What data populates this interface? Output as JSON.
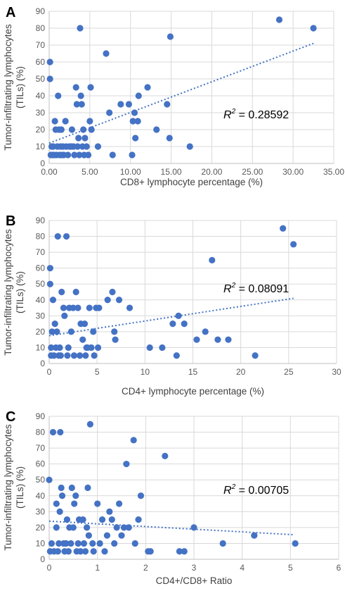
{
  "chart_data": [
    {
      "panel": "A",
      "type": "scatter",
      "xlabel": "CD8+ lymphocyte percentage (%)",
      "ylabel": "Tumor-infiltrating lymphocytes (TILs) (%)",
      "xlim": [
        0,
        35
      ],
      "ylim": [
        0,
        90
      ],
      "xticks": [
        "0.00",
        "5.00",
        "10.00",
        "15.00",
        "20.00",
        "25.00",
        "30.00",
        "35.00"
      ],
      "yticks": [
        "0",
        "10",
        "20",
        "30",
        "40",
        "50",
        "60",
        "70",
        "80",
        "90"
      ],
      "r2_label": "R",
      "r2_sup": "2",
      "r2_value": " = 0.28592",
      "grid": true,
      "trendline": {
        "x": [
          0,
          32.5
        ],
        "y": [
          12,
          71
        ]
      },
      "points": [
        [
          0.1,
          60
        ],
        [
          0.1,
          50
        ],
        [
          0.2,
          5
        ],
        [
          0.3,
          10
        ],
        [
          0.4,
          5
        ],
        [
          0.5,
          10
        ],
        [
          0.6,
          5
        ],
        [
          0.7,
          25
        ],
        [
          0.8,
          20
        ],
        [
          0.9,
          5
        ],
        [
          1.0,
          10
        ],
        [
          1.1,
          40
        ],
        [
          1.2,
          20
        ],
        [
          1.3,
          5
        ],
        [
          1.4,
          10
        ],
        [
          1.5,
          20
        ],
        [
          1.6,
          5
        ],
        [
          1.7,
          10
        ],
        [
          1.8,
          5
        ],
        [
          2.0,
          25
        ],
        [
          2.1,
          10
        ],
        [
          2.3,
          5
        ],
        [
          2.5,
          10
        ],
        [
          2.7,
          10
        ],
        [
          2.8,
          20
        ],
        [
          3.0,
          10
        ],
        [
          3.1,
          5
        ],
        [
          3.3,
          45
        ],
        [
          3.4,
          35
        ],
        [
          3.5,
          10
        ],
        [
          3.6,
          15
        ],
        [
          3.7,
          5
        ],
        [
          3.8,
          80
        ],
        [
          3.9,
          40
        ],
        [
          4.0,
          35
        ],
        [
          4.1,
          10
        ],
        [
          4.2,
          20
        ],
        [
          4.3,
          5
        ],
        [
          4.4,
          15
        ],
        [
          4.6,
          10
        ],
        [
          4.8,
          5
        ],
        [
          5.0,
          25
        ],
        [
          5.1,
          45
        ],
        [
          5.2,
          20
        ],
        [
          6.0,
          10
        ],
        [
          7.0,
          65
        ],
        [
          7.4,
          30
        ],
        [
          7.8,
          5
        ],
        [
          8.8,
          35
        ],
        [
          9.8,
          35
        ],
        [
          10.2,
          5
        ],
        [
          10.3,
          25
        ],
        [
          10.5,
          30
        ],
        [
          10.6,
          15
        ],
        [
          10.9,
          25
        ],
        [
          11.0,
          40
        ],
        [
          12.1,
          45
        ],
        [
          13.2,
          20
        ],
        [
          14.5,
          35
        ],
        [
          14.8,
          15
        ],
        [
          14.9,
          75
        ],
        [
          17.3,
          10
        ],
        [
          28.3,
          85
        ],
        [
          32.5,
          80
        ]
      ]
    },
    {
      "panel": "B",
      "type": "scatter",
      "xlabel": "CD4+ lymphocyte percentage (%)",
      "ylabel": "Tumor-infiltrating lymphocytes (TILs) (%)",
      "xlim": [
        0,
        30
      ],
      "ylim": [
        0,
        90
      ],
      "xticks": [
        "0",
        "5",
        "10",
        "15",
        "20",
        "25",
        "30"
      ],
      "yticks": [
        "0",
        "10",
        "20",
        "30",
        "40",
        "50",
        "60",
        "70",
        "80",
        "90"
      ],
      "r2_label": "R",
      "r2_sup": "2",
      "r2_value": " = 0.08091",
      "grid": true,
      "trendline": {
        "x": [
          0,
          25.5
        ],
        "y": [
          17.5,
          41
        ]
      },
      "points": [
        [
          0.1,
          60
        ],
        [
          0.1,
          50
        ],
        [
          0.2,
          5
        ],
        [
          0.2,
          10
        ],
        [
          0.3,
          20
        ],
        [
          0.4,
          40
        ],
        [
          0.5,
          5
        ],
        [
          0.6,
          25
        ],
        [
          0.7,
          10
        ],
        [
          0.8,
          20
        ],
        [
          0.9,
          80
        ],
        [
          1.0,
          5
        ],
        [
          1.1,
          10
        ],
        [
          1.2,
          5
        ],
        [
          1.3,
          45
        ],
        [
          1.5,
          35
        ],
        [
          1.6,
          30
        ],
        [
          1.8,
          80
        ],
        [
          1.9,
          5
        ],
        [
          2.0,
          10
        ],
        [
          2.1,
          35
        ],
        [
          2.3,
          20
        ],
        [
          2.5,
          35
        ],
        [
          2.6,
          5
        ],
        [
          2.8,
          45
        ],
        [
          3.0,
          35
        ],
        [
          3.2,
          5
        ],
        [
          3.3,
          25
        ],
        [
          3.5,
          15
        ],
        [
          3.7,
          25
        ],
        [
          3.8,
          5
        ],
        [
          3.9,
          10
        ],
        [
          4.0,
          10
        ],
        [
          4.2,
          35
        ],
        [
          4.4,
          10
        ],
        [
          4.6,
          20
        ],
        [
          4.7,
          5
        ],
        [
          4.9,
          35
        ],
        [
          5.1,
          10
        ],
        [
          5.2,
          35
        ],
        [
          6.1,
          40
        ],
        [
          6.6,
          45
        ],
        [
          6.8,
          20
        ],
        [
          6.9,
          15
        ],
        [
          7.3,
          40
        ],
        [
          8.4,
          35
        ],
        [
          10.5,
          10
        ],
        [
          11.8,
          10
        ],
        [
          12.9,
          25
        ],
        [
          13.3,
          5
        ],
        [
          13.5,
          30
        ],
        [
          14.1,
          25
        ],
        [
          15.4,
          15
        ],
        [
          16.3,
          20
        ],
        [
          17.0,
          65
        ],
        [
          17.6,
          15
        ],
        [
          18.7,
          15
        ],
        [
          21.5,
          5
        ],
        [
          24.4,
          85
        ],
        [
          25.5,
          75
        ]
      ]
    },
    {
      "panel": "C",
      "type": "scatter",
      "xlabel": "CD4+/CD8+ Ratio",
      "ylabel": "Tumor-infiltrating lymphocytes (TILs) (%)",
      "xlim": [
        0,
        6
      ],
      "ylim": [
        0,
        90
      ],
      "xticks": [
        "0",
        "1",
        "2",
        "3",
        "4",
        "5",
        "6"
      ],
      "yticks": [
        "0",
        "10",
        "20",
        "30",
        "40",
        "50",
        "60",
        "70",
        "80",
        "90"
      ],
      "r2_label": "R",
      "r2_sup": "2",
      "r2_value": " = 0.00705",
      "grid": true,
      "trendline": {
        "x": [
          0,
          5.05
        ],
        "y": [
          24,
          15.5
        ]
      },
      "points": [
        [
          0.0,
          50
        ],
        [
          0.02,
          5
        ],
        [
          0.05,
          10
        ],
        [
          0.08,
          80
        ],
        [
          0.1,
          5
        ],
        [
          0.15,
          20
        ],
        [
          0.15,
          35
        ],
        [
          0.18,
          5
        ],
        [
          0.2,
          10
        ],
        [
          0.22,
          30
        ],
        [
          0.23,
          80
        ],
        [
          0.25,
          45
        ],
        [
          0.27,
          40
        ],
        [
          0.3,
          10
        ],
        [
          0.32,
          5
        ],
        [
          0.35,
          10
        ],
        [
          0.37,
          25
        ],
        [
          0.4,
          5
        ],
        [
          0.42,
          20
        ],
        [
          0.45,
          10
        ],
        [
          0.47,
          45
        ],
        [
          0.5,
          20
        ],
        [
          0.52,
          35
        ],
        [
          0.55,
          40
        ],
        [
          0.57,
          5
        ],
        [
          0.6,
          10
        ],
        [
          0.62,
          25
        ],
        [
          0.65,
          5
        ],
        [
          0.7,
          25
        ],
        [
          0.72,
          10
        ],
        [
          0.75,
          5
        ],
        [
          0.78,
          20
        ],
        [
          0.8,
          45
        ],
        [
          0.82,
          15
        ],
        [
          0.85,
          85
        ],
        [
          0.9,
          10
        ],
        [
          0.92,
          5
        ],
        [
          1.0,
          35
        ],
        [
          1.05,
          10
        ],
        [
          1.1,
          25
        ],
        [
          1.15,
          5
        ],
        [
          1.2,
          15
        ],
        [
          1.25,
          30
        ],
        [
          1.3,
          25
        ],
        [
          1.35,
          10
        ],
        [
          1.4,
          20
        ],
        [
          1.45,
          35
        ],
        [
          1.5,
          15
        ],
        [
          1.55,
          20
        ],
        [
          1.6,
          60
        ],
        [
          1.65,
          20
        ],
        [
          1.75,
          75
        ],
        [
          1.78,
          10
        ],
        [
          1.85,
          25
        ],
        [
          1.9,
          40
        ],
        [
          2.05,
          5
        ],
        [
          2.1,
          5
        ],
        [
          2.4,
          65
        ],
        [
          2.7,
          5
        ],
        [
          2.8,
          5
        ],
        [
          3.0,
          20
        ],
        [
          3.6,
          10
        ],
        [
          4.25,
          15
        ],
        [
          5.1,
          10
        ]
      ]
    }
  ]
}
